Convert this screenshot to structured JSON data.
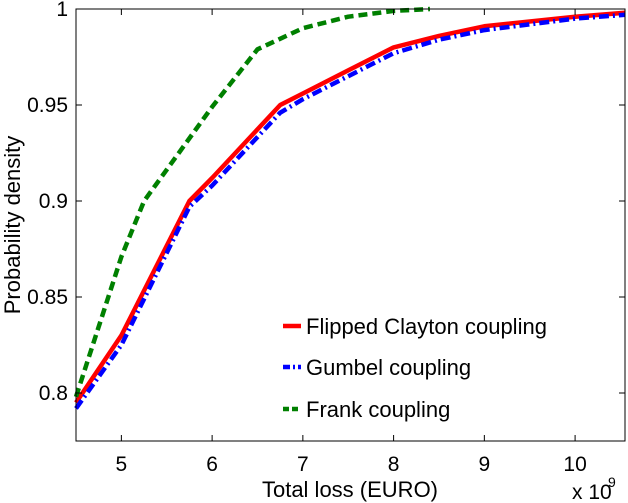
{
  "chart_data": {
    "type": "line",
    "xlabel": "Total loss (EURO)",
    "ylabel": "Probability density",
    "x_multiplier": "x 10",
    "x_multiplier_exponent": "9",
    "xlim": [
      4.5,
      10.55
    ],
    "ylim": [
      0.775,
      1.0
    ],
    "xticks": [
      "5",
      "6",
      "7",
      "8",
      "9",
      "10"
    ],
    "yticks": [
      "0.8",
      "0.85",
      "0.9",
      "0.95",
      "1"
    ],
    "grid": false,
    "legend_position": "bottom-right",
    "series": [
      {
        "name": "Flipped Clayton coupling",
        "color": "#ff0000",
        "style": "solid",
        "x": [
          4.5,
          5.0,
          5.75,
          6.0,
          6.75,
          7.0,
          7.5,
          8.0,
          8.5,
          9.0,
          10.0,
          10.55
        ],
        "y": [
          0.795,
          0.83,
          0.9,
          0.912,
          0.95,
          0.956,
          0.968,
          0.98,
          0.986,
          0.991,
          0.996,
          0.998
        ]
      },
      {
        "name": "Gumbel coupling",
        "color": "#0000ff",
        "style": "dashdot",
        "x": [
          4.5,
          5.0,
          5.75,
          6.0,
          6.75,
          7.0,
          7.5,
          8.0,
          8.5,
          9.0,
          10.0,
          10.55
        ],
        "y": [
          0.792,
          0.825,
          0.897,
          0.908,
          0.946,
          0.953,
          0.965,
          0.977,
          0.984,
          0.989,
          0.995,
          0.997
        ]
      },
      {
        "name": "Frank coupling",
        "color": "#008000",
        "style": "dashed",
        "x": [
          4.5,
          5.0,
          5.25,
          6.0,
          6.5,
          7.0,
          7.5,
          8.0,
          8.4
        ],
        "y": [
          0.798,
          0.871,
          0.9,
          0.949,
          0.979,
          0.99,
          0.996,
          0.999,
          1.0
        ]
      }
    ]
  }
}
